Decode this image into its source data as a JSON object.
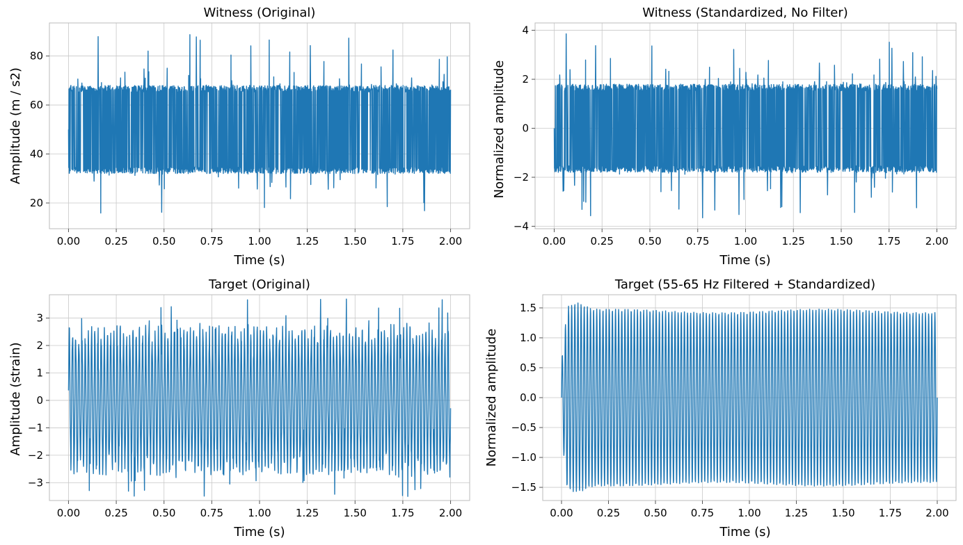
{
  "colors": {
    "series": "#1f77b4",
    "grid": "#c8c8c8",
    "frame": "#bbbbbb"
  },
  "chart_data": [
    {
      "type": "line",
      "title": "Witness (Original)",
      "xlabel": "Time (s)",
      "ylabel": "Amplitude (m / s2)",
      "xlim": [
        -0.1,
        2.1
      ],
      "ylim": [
        9.5,
        93.5
      ],
      "xticks": [
        0.0,
        0.25,
        0.5,
        0.75,
        1.0,
        1.25,
        1.5,
        1.75,
        2.0
      ],
      "xtick_labels": [
        "0.00",
        "0.25",
        "0.50",
        "0.75",
        "1.00",
        "1.25",
        "1.50",
        "1.75",
        "2.00"
      ],
      "yticks": [
        20,
        40,
        60,
        80
      ],
      "ytick_labels": [
        "20",
        "40",
        "60",
        "80"
      ],
      "grid": true,
      "signal": {
        "kind": "noise",
        "mean": 50,
        "amplitude": 20,
        "band_low": 32,
        "band_high": 68,
        "peak_max": 89,
        "peak_min": 13,
        "time_range": [
          0,
          2
        ]
      }
    },
    {
      "type": "line",
      "title": "Witness (Standardized, No Filter)",
      "xlabel": "Time (s)",
      "ylabel": "Normalized amplitude",
      "xlim": [
        -0.1,
        2.1
      ],
      "ylim": [
        -4.1,
        4.3
      ],
      "xticks": [
        0.0,
        0.25,
        0.5,
        0.75,
        1.0,
        1.25,
        1.5,
        1.75,
        2.0
      ],
      "xtick_labels": [
        "0.00",
        "0.25",
        "0.50",
        "0.75",
        "1.00",
        "1.25",
        "1.50",
        "1.75",
        "2.00"
      ],
      "yticks": [
        -4,
        -2,
        0,
        2,
        4
      ],
      "ytick_labels": [
        "−4",
        "−2",
        "0",
        "2",
        "4"
      ],
      "grid": true,
      "signal": {
        "kind": "noise",
        "mean": 0,
        "amplitude": 1.9,
        "band_low": -1.8,
        "band_high": 1.8,
        "peak_max": 3.9,
        "peak_min": -3.7,
        "time_range": [
          0,
          2
        ]
      }
    },
    {
      "type": "line",
      "title": "Target (Original)",
      "xlabel": "Time (s)",
      "ylabel": "Amplitude (strain)",
      "xlim": [
        -0.1,
        2.1
      ],
      "ylim": [
        -3.65,
        3.85
      ],
      "xticks": [
        0.0,
        0.25,
        0.5,
        0.75,
        1.0,
        1.25,
        1.5,
        1.75,
        2.0
      ],
      "xtick_labels": [
        "0.00",
        "0.25",
        "0.50",
        "0.75",
        "1.00",
        "1.25",
        "1.50",
        "1.75",
        "2.00"
      ],
      "yticks": [
        -3,
        -2,
        -1,
        0,
        1,
        2,
        3
      ],
      "ytick_labels": [
        "−3",
        "−2",
        "−1",
        "0",
        "1",
        "2",
        "3"
      ],
      "grid": true,
      "signal": {
        "kind": "sine_plus_noise",
        "mean": 0,
        "amplitude": 2.4,
        "band_low": -2.5,
        "band_high": 2.6,
        "peak_max": 3.55,
        "peak_min": -3.3,
        "frequency_hz": 60,
        "time_range": [
          0,
          2
        ]
      }
    },
    {
      "type": "line",
      "title": "Target (55-65 Hz Filtered + Standardized)",
      "xlabel": "Time (s)",
      "ylabel": "Normalized amplitude",
      "xlim": [
        -0.1,
        2.1
      ],
      "ylim": [
        -1.72,
        1.72
      ],
      "xticks": [
        0.0,
        0.25,
        0.5,
        0.75,
        1.0,
        1.25,
        1.5,
        1.75,
        2.0
      ],
      "xtick_labels": [
        "0.00",
        "0.25",
        "0.50",
        "0.75",
        "1.00",
        "1.25",
        "1.50",
        "1.75",
        "2.00"
      ],
      "yticks": [
        -1.5,
        -1.0,
        -0.5,
        0.0,
        0.5,
        1.0,
        1.5
      ],
      "ytick_labels": [
        "−1.5",
        "−1.0",
        "−0.5",
        "0.0",
        "0.5",
        "1.0",
        "1.5"
      ],
      "grid": true,
      "signal": {
        "kind": "sine",
        "mean": 0,
        "amplitude": 1.45,
        "peak_max": 1.57,
        "peak_min": -1.57,
        "frequency_hz": 60,
        "time_range": [
          0,
          2
        ]
      }
    }
  ]
}
